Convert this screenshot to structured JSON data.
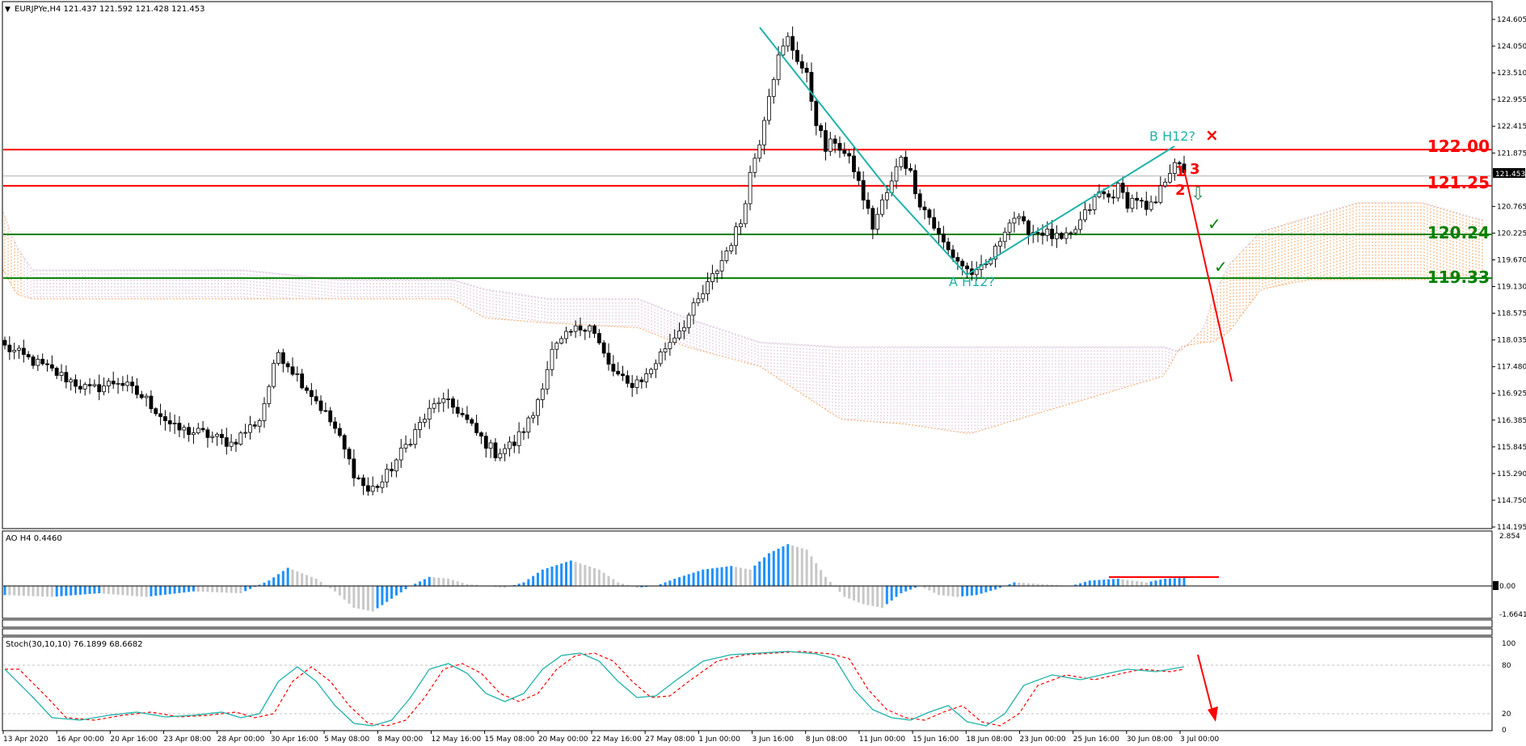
{
  "header": {
    "symbol_info": "EURJPYe,H4  121.437 121.592 121.428 121.453",
    "ao_label": "AO H4   0.4460",
    "stoch_label": "Stoch(30,10,10) 76.1899 68.6682"
  },
  "colors": {
    "resistance": "#ff0000",
    "support": "#008000",
    "pattern": "#20b2aa",
    "cloud_upper": "#f4a460",
    "cloud_lower": "#d8bfd8",
    "candle": "#000000",
    "ao_up": "#1e90ff",
    "ao_down": "#c8c8c8",
    "stoch_main": "#20b2aa",
    "stoch_signal": "#ff0000"
  },
  "chart_data": [
    {
      "type": "candlestick",
      "panel": "main",
      "ylim": [
        114.195,
        124.605
      ],
      "y_ticks": [
        "124.605",
        "124.050",
        "123.510",
        "122.955",
        "122.415",
        "121.875",
        "121.453",
        "120.765",
        "120.225",
        "119.670",
        "119.130",
        "118.575",
        "118.035",
        "117.480",
        "116.925",
        "116.385",
        "115.845",
        "115.290",
        "114.750",
        "114.195"
      ],
      "x_ticks": [
        "13 Apr 2020",
        "16 Apr 00:00",
        "20 Apr 16:00",
        "23 Apr 08:00",
        "28 Apr 00:00",
        "30 Apr 16:00",
        "5 May 08:00",
        "8 May 00:00",
        "12 May 16:00",
        "15 May 08:00",
        "20 May 00:00",
        "22 May 16:00",
        "27 May 08:00",
        "1 Jun 00:00",
        "3 Jun 16:00",
        "8 Jun 08:00",
        "11 Jun 00:00",
        "15 Jun 16:00",
        "18 Jun 08:00",
        "23 Jun 00:00",
        "25 Jun 16:00",
        "30 Jun 08:00",
        "3 Jul 00:00"
      ],
      "close_keypoints": [
        [
          0,
          117.9
        ],
        [
          6,
          117.6
        ],
        [
          12,
          117.3
        ],
        [
          18,
          117.0
        ],
        [
          24,
          117.2
        ],
        [
          30,
          116.8
        ],
        [
          36,
          116.2
        ],
        [
          42,
          116.1
        ],
        [
          48,
          115.9
        ],
        [
          54,
          116.4
        ],
        [
          58,
          117.8
        ],
        [
          62,
          117.3
        ],
        [
          66,
          116.8
        ],
        [
          70,
          116.2
        ],
        [
          74,
          115.3
        ],
        [
          77,
          114.9
        ],
        [
          80,
          115.1
        ],
        [
          84,
          115.7
        ],
        [
          88,
          116.3
        ],
        [
          92,
          116.8
        ],
        [
          96,
          116.6
        ],
        [
          100,
          116.1
        ],
        [
          104,
          115.7
        ],
        [
          108,
          115.9
        ],
        [
          112,
          116.5
        ],
        [
          116,
          117.8
        ],
        [
          120,
          118.2
        ],
        [
          124,
          118.4
        ],
        [
          128,
          117.5
        ],
        [
          132,
          117.1
        ],
        [
          136,
          117.3
        ],
        [
          140,
          117.9
        ],
        [
          144,
          118.4
        ],
        [
          148,
          119.0
        ],
        [
          152,
          119.7
        ],
        [
          156,
          120.5
        ],
        [
          158,
          121.5
        ],
        [
          160,
          122.2
        ],
        [
          162,
          123.2
        ],
        [
          164,
          123.9
        ],
        [
          166,
          124.3
        ],
        [
          168,
          123.9
        ],
        [
          170,
          123.5
        ],
        [
          172,
          122.6
        ],
        [
          174,
          122.0
        ],
        [
          176,
          122.2
        ],
        [
          178,
          121.9
        ],
        [
          180,
          121.6
        ],
        [
          182,
          121.0
        ],
        [
          184,
          120.4
        ],
        [
          186,
          120.9
        ],
        [
          188,
          121.3
        ],
        [
          190,
          121.9
        ],
        [
          192,
          121.5
        ],
        [
          194,
          120.9
        ],
        [
          196,
          120.6
        ],
        [
          198,
          120.2
        ],
        [
          200,
          119.9
        ],
        [
          202,
          119.7
        ],
        [
          204,
          119.5
        ],
        [
          206,
          119.4
        ],
        [
          208,
          119.6
        ],
        [
          210,
          119.9
        ],
        [
          212,
          120.4
        ],
        [
          214,
          120.6
        ],
        [
          216,
          120.4
        ],
        [
          218,
          120.3
        ],
        [
          220,
          120.3
        ],
        [
          222,
          120.2
        ],
        [
          224,
          120.1
        ],
        [
          226,
          120.2
        ],
        [
          228,
          120.5
        ],
        [
          230,
          120.8
        ],
        [
          232,
          121.1
        ],
        [
          234,
          121.0
        ],
        [
          236,
          121.2
        ],
        [
          238,
          120.9
        ],
        [
          240,
          121.0
        ],
        [
          242,
          120.7
        ],
        [
          244,
          120.9
        ],
        [
          246,
          121.4
        ],
        [
          248,
          121.8
        ],
        [
          249,
          121.6
        ],
        [
          250,
          121.45
        ]
      ],
      "levels": [
        {
          "label": "122.00",
          "value": 122.0,
          "kind": "resistance"
        },
        {
          "label": "121.25",
          "value": 121.25,
          "kind": "resistance"
        },
        {
          "label": "120.24",
          "value": 120.24,
          "kind": "support"
        },
        {
          "label": "119.33",
          "value": 119.33,
          "kind": "support"
        }
      ],
      "annotations": {
        "pattern_a": "A H12?",
        "pattern_b": "B H12?",
        "wave_1": "1",
        "wave_2": "2",
        "wave_3": "3",
        "cross_mark": "×",
        "check_mark": "✓",
        "down_arrow": "⇩"
      }
    },
    {
      "type": "bar",
      "panel": "ao",
      "ylim": [
        -1.6641,
        2.854
      ],
      "y_ticks": [
        "2.854",
        "0.00",
        "-1.6641"
      ]
    },
    {
      "type": "line",
      "panel": "stoch",
      "ylim": [
        0,
        100
      ],
      "y_ticks": [
        "100",
        "80",
        "20",
        "0"
      ]
    }
  ]
}
